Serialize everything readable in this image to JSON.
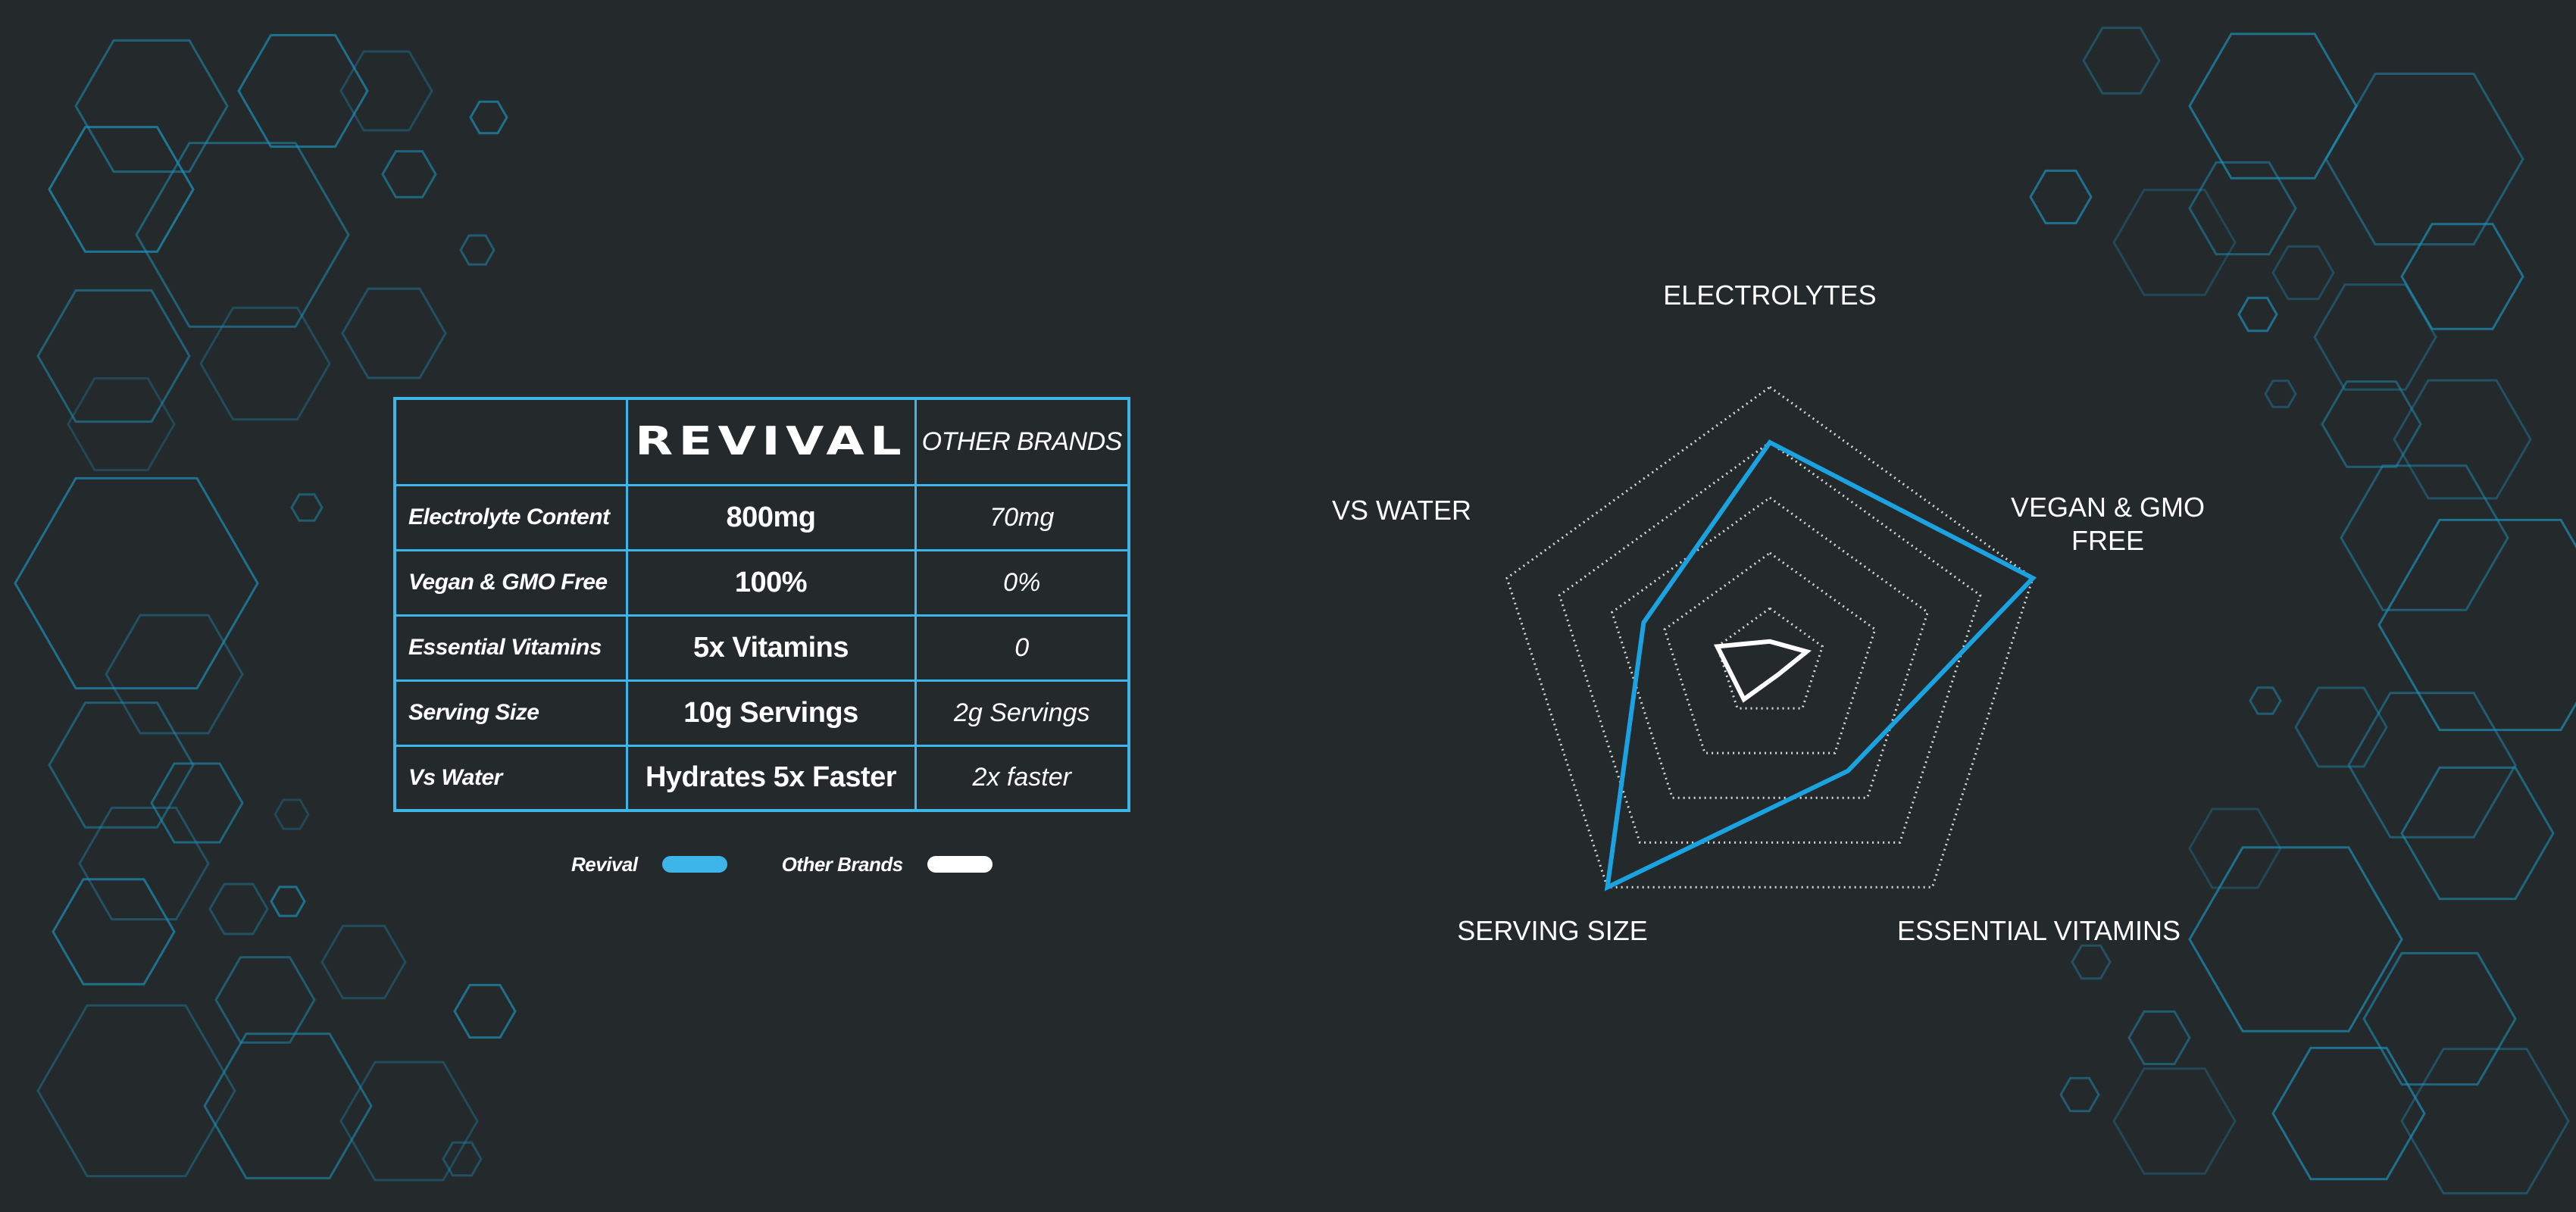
{
  "table": {
    "brand_header": "REVIVAL",
    "other_header": "OTHER BRANDS",
    "rows": [
      {
        "label": "Electrolyte Content",
        "revival": "800mg",
        "other": "70mg"
      },
      {
        "label": "Vegan & GMO Free",
        "revival": "100%",
        "other": "0%"
      },
      {
        "label": "Essential Vitamins",
        "revival": "5x Vitamins",
        "other": "0"
      },
      {
        "label": "Serving Size",
        "revival": "10g Servings",
        "other": "2g Servings"
      },
      {
        "label": "Vs Water",
        "revival": "Hydrates 5x Faster",
        "other": "2x faster"
      }
    ]
  },
  "legend": {
    "revival": "Revival",
    "other": "Other Brands"
  },
  "colors": {
    "accent": "#3db5e8",
    "radar_line": "#1aa3e0",
    "background": "#24292b",
    "other": "#ffffff"
  },
  "chart_data": {
    "type": "radar",
    "axes": [
      "ELECTROLYTES",
      "VEGAN & GMO FREE",
      "ESSENTIAL VITAMINS",
      "SERVING SIZE",
      "VS WATER"
    ],
    "rings": 5,
    "range": [
      0,
      5
    ],
    "series": [
      {
        "name": "Revival",
        "values": [
          4.0,
          5.0,
          2.4,
          5.0,
          2.4
        ]
      },
      {
        "name": "Other Brands",
        "values": [
          0.4,
          0.7,
          0.25,
          0.8,
          1.0
        ]
      }
    ]
  }
}
